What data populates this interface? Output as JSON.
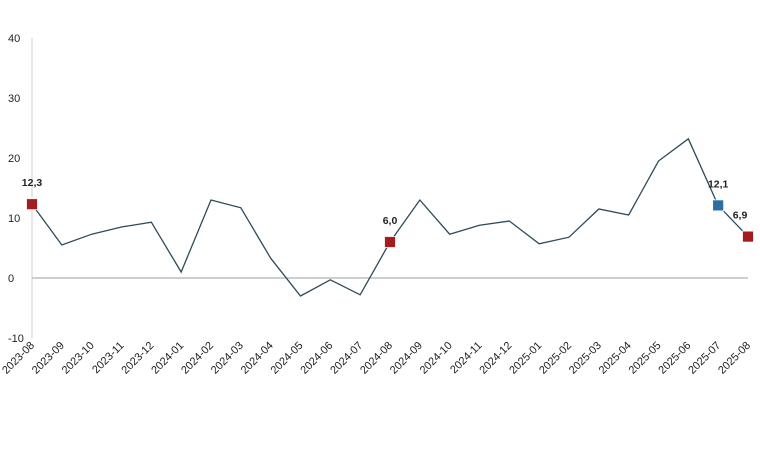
{
  "chart_data": {
    "type": "line",
    "categories": [
      "2023-08",
      "2023-09",
      "2023-10",
      "2023-11",
      "2023-12",
      "2024-01",
      "2024-02",
      "2024-03",
      "2024-04",
      "2024-05",
      "2024-06",
      "2024-07",
      "2024-08",
      "2024-09",
      "2024-10",
      "2024-11",
      "2024-12",
      "2025-01",
      "2025-02",
      "2025-03",
      "2025-04",
      "2025-05",
      "2025-06",
      "2025-07",
      "2025-08"
    ],
    "values": [
      12.3,
      5.5,
      7.3,
      8.5,
      9.3,
      1.0,
      13.0,
      11.7,
      3.3,
      -3.0,
      -0.3,
      -2.8,
      6.0,
      13.0,
      7.3,
      8.8,
      9.5,
      5.7,
      6.8,
      11.5,
      10.5,
      19.5,
      23.2,
      12.1,
      6.9
    ],
    "value_labels": [
      "12,3",
      null,
      null,
      null,
      null,
      null,
      null,
      null,
      null,
      null,
      null,
      null,
      "6,0",
      null,
      null,
      null,
      null,
      null,
      null,
      null,
      null,
      null,
      null,
      "12,1",
      "6,9"
    ],
    "marker_colors": [
      "#a51c1c",
      null,
      null,
      null,
      null,
      null,
      null,
      null,
      null,
      null,
      null,
      null,
      "#a51c1c",
      null,
      null,
      null,
      null,
      null,
      null,
      null,
      null,
      null,
      null,
      "#2e6da4",
      "#a51c1c"
    ],
    "color": "#2f4a58",
    "ylim": [
      -10,
      40
    ],
    "yticks": [
      -10,
      0,
      10,
      20,
      30,
      40
    ]
  }
}
